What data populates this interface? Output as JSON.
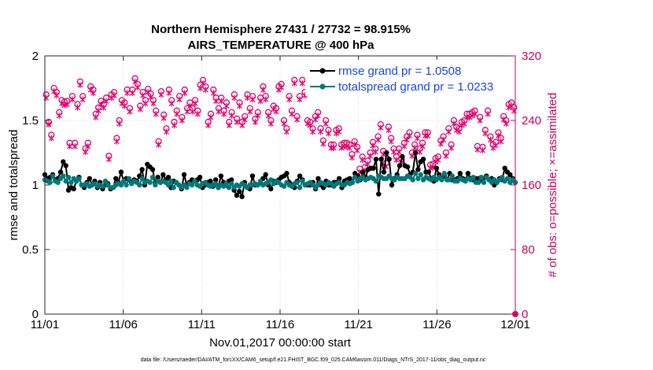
{
  "chart_data": {
    "type": "line",
    "title": "Northern Hemisphere 27431 / 27732 = 98.915%",
    "subtitle": "AIRS_TEMPERATURE @ 400 hPa",
    "xlabel": "Nov.01,2017 00:00:00 start",
    "ylabel_left": "rmse and totalspread",
    "ylabel_right": "# of obs: o=possible; ×=assimilated",
    "footer": "data file: /Users/raeder/DAI/ATM_forcXX/CAM6_setup/f.e21.FHIST_BGC.f09_025.CAM6assim.011/Diags_NTrS_2017-11/obs_diag_output.nc",
    "x_range_days": [
      0,
      30
    ],
    "xticks": [
      0,
      5,
      10,
      15,
      20,
      25,
      30
    ],
    "xtick_labels": [
      "11/01",
      "11/06",
      "11/11",
      "11/16",
      "11/21",
      "11/26",
      "12/01"
    ],
    "ylim_left": [
      0,
      2
    ],
    "yticks_left": [
      "0",
      "0.5",
      "1",
      "1.5",
      "2"
    ],
    "ylim_right": [
      0,
      320
    ],
    "yticks_right": [
      "0",
      "80",
      "160",
      "240",
      "320"
    ],
    "grid": true,
    "legend_position": "top-right",
    "series": [
      {
        "name": "rmse grand pr = 1.0508",
        "color": "#000000",
        "axis": "left",
        "values": [
          1.08,
          1.05,
          1.06,
          1.08,
          1.04,
          1.05,
          1.1,
          1.18,
          1.15,
          0.96,
          0.98,
          0.97,
          1.03,
          1.06,
          1.0,
          0.98,
          1.02,
          1.05,
          1.0,
          1.03,
          0.98,
          1.02,
          0.97,
          1.0,
          1.01,
          0.97,
          0.98,
          1.05,
          1.02,
          1.1,
          1.03,
          1.05,
          1.04,
          1.02,
          1.04,
          1.03,
          1.07,
          1.12,
          1.0,
          1.16,
          1.14,
          1.12,
          1.02,
          1.06,
          1.02,
          1.08,
          1.04,
          1.06,
          0.98,
          1.03,
          1.02,
          1.0,
          0.97,
          1.08,
          1.0,
          1.02,
          1.04,
          1.03,
          1.04,
          1.06,
          0.98,
          1.0,
          1.02,
          1.03,
          0.99,
          1.04,
          0.98,
          1.07,
          1.02,
          1.0,
          1.03,
          1.04,
          0.96,
          0.92,
          0.95,
          0.91,
          1.02,
          0.98,
          0.97,
          1.07,
          1.0,
          1.0,
          1.02,
          1.05,
          1.08,
          1.0,
          0.97,
          1.03,
          1.02,
          1.04,
          1.06,
          1.07,
          1.09,
          1.02,
          1.0,
          0.98,
          1.03,
          1.07,
          1.04,
          1.0,
          1.0,
          1.0,
          1.02,
          0.97,
          1.05,
          1.0,
          0.98,
          1.03,
          1.0,
          1.0,
          1.02,
          1.02,
          1.05,
          0.98,
          1.03,
          1.04,
          1.05,
          1.02,
          1.09,
          1.07,
          1.04,
          1.1,
          1.06,
          1.12,
          1.13,
          1.13,
          1.2,
          0.93,
          1.2,
          1.1,
          1.25,
          1.2,
          1.0,
          1.05,
          1.08,
          1.15,
          1.22,
          1.15,
          1.14,
          1.08,
          1.1,
          1.25,
          1.12,
          1.18,
          1.2,
          1.1,
          1.1,
          1.05,
          1.03,
          1.13,
          1.08,
          1.05,
          1.07,
          1.04,
          1.09,
          1.04,
          1.04,
          1.05,
          1.09,
          1.05,
          1.04,
          1.09,
          1.05,
          1.04,
          1.05,
          1.05,
          1.04,
          1.05,
          1.07,
          1.04,
          1.05,
          1.0,
          1.02,
          1.05,
          1.04,
          1.13,
          1.1,
          1.08,
          1.05,
          1.02
        ]
      },
      {
        "name": "totalspread grand pr = 1.0233",
        "color": "#007878",
        "axis": "left",
        "values": [
          1.04,
          1.03,
          1.02,
          1.07,
          1.03,
          1.02,
          1.05,
          1.07,
          1.03,
          1.06,
          1.02,
          1.05,
          1.03,
          1.05,
          1.0,
          1.0,
          1.01,
          0.99,
          1.0,
          1.01,
          0.99,
          1.0,
          0.99,
          1.03,
          1.0,
          0.98,
          0.98,
          1.0,
          1.01,
          1.0,
          1.03,
          1.0,
          1.05,
          1.01,
          1.03,
          1.02,
          1.0,
          1.05,
          1.02,
          1.03,
          1.02,
          1.06,
          1.0,
          1.03,
          1.02,
          1.03,
          1.02,
          1.0,
          1.03,
          0.98,
          1.02,
          1.0,
          0.98,
          1.0,
          0.98,
          1.01,
          1.0,
          1.03,
          1.0,
          0.99,
          1.01,
          1.02,
          1.0,
          0.99,
          1.0,
          1.01,
          0.98,
          1.0,
          0.99,
          1.01,
          0.98,
          1.01,
          0.98,
          1.0,
          0.99,
          1.01,
          1.0,
          0.98,
          1.0,
          1.0,
          1.01,
          1.0,
          1.03,
          1.0,
          1.01,
          1.02,
          1.04,
          1.01,
          1.03,
          1.02,
          1.0,
          0.99,
          1.02,
          1.0,
          0.99,
          1.01,
          1.02,
          0.98,
          1.03,
          1.0,
          1.01,
          1.02,
          1.0,
          0.98,
          1.0,
          1.02,
          1.01,
          1.0,
          1.02,
          1.01,
          0.99,
          1.01,
          1.02,
          1.0,
          1.0,
          1.02,
          1.01,
          1.02,
          1.06,
          1.03,
          1.05,
          1.06,
          1.04,
          1.05,
          1.06,
          1.05,
          1.03,
          1.07,
          1.06,
          1.05,
          1.05,
          1.07,
          1.05,
          1.04,
          1.06,
          1.05,
          1.05,
          1.05,
          1.07,
          1.06,
          1.04,
          1.09,
          1.05,
          1.08,
          1.04,
          1.06,
          1.05,
          1.04,
          1.06,
          1.04,
          1.06,
          1.04,
          1.09,
          1.04,
          1.04,
          1.07,
          1.03,
          1.03,
          1.05,
          1.04,
          1.03,
          1.05,
          1.04,
          1.06,
          1.02,
          1.02,
          1.06,
          1.02,
          1.06,
          1.04,
          1.02,
          1.04,
          1.02,
          1.04,
          1.06,
          1.03,
          1.05,
          1.02,
          1.04,
          1.02
        ]
      },
      {
        "name": "possible",
        "marker": "o",
        "color": "#e0006a",
        "axis": "right",
        "values": [
          272,
          238,
          222,
          280,
          275,
          250,
          265,
          263,
          264,
          212,
          270,
          212,
          260,
          288,
          270,
          205,
          212,
          282,
          278,
          248,
          256,
          264,
          260,
          268,
          196,
          272,
          275,
          218,
          240,
          265,
          262,
          278,
          255,
          278,
          292,
          285,
          258,
          275,
          265,
          279,
          273,
          265,
          252,
          214,
          276,
          247,
          230,
          278,
          265,
          238,
          252,
          270,
          244,
          278,
          255,
          262,
          255,
          265,
          252,
          284,
          290,
          282,
          238,
          248,
          278,
          268,
          255,
          268,
          252,
          262,
          238,
          250,
          272,
          242,
          262,
          238,
          245,
          272,
          255,
          270,
          242,
          250,
          268,
          282,
          270,
          250,
          240,
          258,
          255,
          282,
          285,
          240,
          230,
          270,
          252,
          290,
          245,
          270,
          290,
          275,
          240,
          238,
          230,
          245,
          250,
          230,
          215,
          240,
          228,
          210,
          210,
          228,
          230,
          210,
          212,
          212,
          210,
          198,
          214,
          207,
          180,
          195,
          182,
          190,
          200,
          213,
          205,
          220,
          235,
          202,
          187,
          232,
          218,
          205,
          195,
          205,
          192,
          212,
          220,
          225,
          200,
          210,
          222,
          205,
          212,
          225,
          225,
          185,
          186,
          193,
          195,
          215,
          220,
          200,
          230,
          210,
          240,
          232,
          230,
          238,
          240,
          248,
          248,
          250,
          252,
          208,
          244,
          207,
          228,
          252,
          220,
          210,
          213,
          225,
          218,
          245,
          240,
          260,
          262,
          256
        ]
      },
      {
        "name": "assimilated",
        "marker": "×",
        "color": "#e0006a",
        "axis": "right",
        "values": [
          268,
          235,
          218,
          276,
          271,
          246,
          261,
          259,
          260,
          208,
          266,
          208,
          256,
          284,
          266,
          201,
          208,
          278,
          274,
          244,
          252,
          260,
          256,
          264,
          192,
          268,
          271,
          214,
          236,
          261,
          258,
          274,
          251,
          274,
          288,
          281,
          254,
          271,
          261,
          275,
          269,
          261,
          248,
          210,
          272,
          243,
          226,
          274,
          261,
          234,
          248,
          266,
          240,
          274,
          251,
          258,
          251,
          261,
          248,
          280,
          286,
          278,
          234,
          244,
          274,
          264,
          251,
          264,
          248,
          258,
          234,
          246,
          268,
          238,
          258,
          234,
          241,
          268,
          251,
          266,
          238,
          246,
          264,
          278,
          266,
          246,
          236,
          254,
          251,
          278,
          281,
          236,
          226,
          266,
          248,
          286,
          241,
          266,
          286,
          271,
          236,
          234,
          226,
          241,
          246,
          226,
          211,
          236,
          224,
          206,
          206,
          224,
          226,
          206,
          208,
          208,
          206,
          194,
          210,
          203,
          176,
          191,
          178,
          186,
          196,
          209,
          201,
          216,
          231,
          198,
          183,
          228,
          214,
          201,
          191,
          201,
          188,
          208,
          216,
          221,
          196,
          206,
          218,
          201,
          208,
          221,
          221,
          181,
          182,
          189,
          191,
          211,
          216,
          196,
          226,
          206,
          236,
          228,
          226,
          234,
          236,
          244,
          244,
          246,
          248,
          204,
          240,
          203,
          224,
          248,
          216,
          206,
          209,
          221,
          214,
          241,
          236,
          256,
          258,
          252
        ]
      }
    ],
    "legend": [
      {
        "label": "rmse grand pr = 1.0508",
        "color": "#000000"
      },
      {
        "label": "totalspread grand pr = 1.0233",
        "color": "#007878"
      }
    ],
    "right_axis_color": "#c8005a",
    "legend_text_color": "#1a44e8"
  }
}
